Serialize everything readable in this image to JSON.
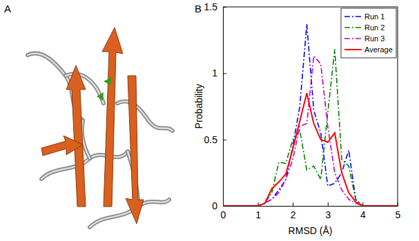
{
  "panel_labels": [
    "A",
    "B"
  ],
  "chart_data": {
    "type": "line",
    "x_label": "RMSD (Å)",
    "y_label": "Probability",
    "x": [
      0,
      0.2,
      0.4,
      0.6,
      0.8,
      1,
      1.2,
      1.4,
      1.6,
      1.8,
      2,
      2.2,
      2.4,
      2.6,
      2.8,
      3,
      3.2,
      3.4,
      3.6,
      3.8,
      4,
      4.2,
      4.4,
      4.6,
      4.8,
      5
    ],
    "series": [
      {
        "name": "Run 1",
        "color": "#0000ff",
        "line_style": "dashdot",
        "values": [
          0,
          0,
          0,
          0,
          0,
          0,
          0.02,
          0.05,
          0.12,
          0.2,
          0.45,
          0.75,
          1.37,
          0.72,
          0.55,
          0.15,
          0.17,
          0.25,
          0.42,
          0.05,
          0,
          0,
          0,
          0,
          0,
          0
        ]
      },
      {
        "name": "Run 2",
        "color": "#008000",
        "line_style": "dashdot",
        "values": [
          0,
          0,
          0,
          0,
          0,
          0,
          0.02,
          0.1,
          0.33,
          0.32,
          0.5,
          0.57,
          0.27,
          0.3,
          0.2,
          0.7,
          1.18,
          0.35,
          0.3,
          0.05,
          0,
          0,
          0,
          0,
          0,
          0
        ]
      },
      {
        "name": "Run 3",
        "color": "#bf00bf",
        "line_style": "dashdot",
        "values": [
          0,
          0,
          0,
          0,
          0,
          0,
          0.02,
          0.05,
          0.1,
          0.2,
          0.35,
          0.6,
          0.62,
          1.13,
          1.07,
          0.6,
          0.25,
          0.12,
          0.05,
          0.02,
          0,
          0,
          0,
          0,
          0,
          0
        ]
      },
      {
        "name": "Average",
        "color": "#ff0000",
        "line_style": "solid",
        "values": [
          0,
          0,
          0,
          0,
          0,
          0,
          0.02,
          0.13,
          0.18,
          0.24,
          0.43,
          0.64,
          0.85,
          0.62,
          0.5,
          0.48,
          0.55,
          0.25,
          0.1,
          0.03,
          0,
          0,
          0,
          0,
          0,
          0
        ]
      }
    ],
    "xlim": [
      0,
      5
    ],
    "xticks": [
      0,
      1,
      2,
      3,
      4,
      5
    ],
    "ylim": [
      0,
      1.5
    ],
    "yticks": [
      0,
      0.5,
      1,
      1.5
    ],
    "grid": false,
    "legend": "upper right"
  }
}
